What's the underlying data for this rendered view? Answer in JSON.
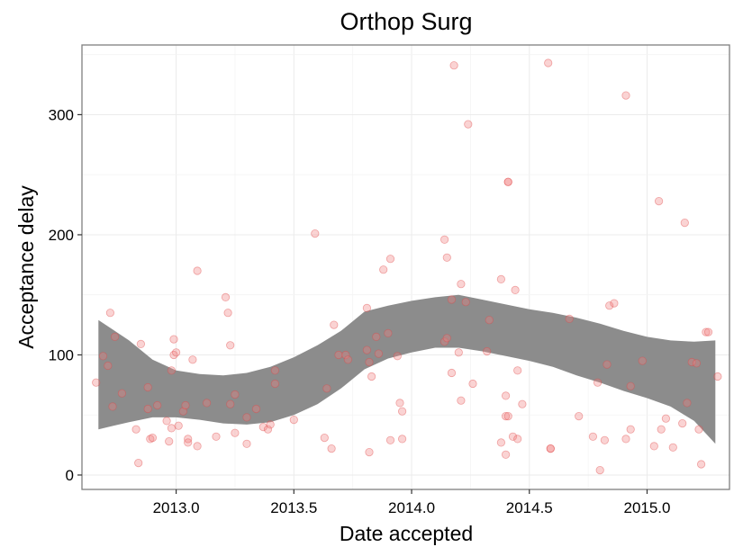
{
  "chart_data": {
    "type": "scatter",
    "title": "Orthop Surg",
    "xlabel": "Date accepted",
    "ylabel": "Acceptance delay",
    "xlim": [
      2012.6,
      2015.35
    ],
    "ylim": [
      -12,
      358
    ],
    "xticks": [
      2013.0,
      2013.5,
      2014.0,
      2014.5,
      2015.0
    ],
    "xtick_labels": [
      "2013.0",
      "2013.5",
      "2014.0",
      "2014.5",
      "2015.0"
    ],
    "yticks": [
      0,
      100,
      200,
      300
    ],
    "ytick_labels": [
      "0",
      "100",
      "200",
      "300"
    ],
    "grid": true,
    "legend": "none",
    "colors": {
      "points": "#f08080",
      "band": "#8c8c8c",
      "grid": "#ebebeb",
      "frame": "#7f7f7f"
    },
    "points": [
      [
        2012.66,
        77
      ],
      [
        2012.69,
        99
      ],
      [
        2012.71,
        91
      ],
      [
        2012.72,
        135
      ],
      [
        2012.73,
        57
      ],
      [
        2012.74,
        115
      ],
      [
        2012.77,
        68
      ],
      [
        2012.83,
        38
      ],
      [
        2012.84,
        10
      ],
      [
        2012.85,
        109
      ],
      [
        2012.88,
        55
      ],
      [
        2012.88,
        73
      ],
      [
        2012.89,
        30
      ],
      [
        2012.9,
        31
      ],
      [
        2012.92,
        58
      ],
      [
        2012.96,
        45
      ],
      [
        2012.97,
        28
      ],
      [
        2012.98,
        87
      ],
      [
        2012.98,
        39
      ],
      [
        2012.99,
        113
      ],
      [
        2012.99,
        100
      ],
      [
        2013.0,
        102
      ],
      [
        2013.01,
        41
      ],
      [
        2013.03,
        53
      ],
      [
        2013.04,
        58
      ],
      [
        2013.05,
        27
      ],
      [
        2013.05,
        30
      ],
      [
        2013.07,
        96
      ],
      [
        2013.09,
        170
      ],
      [
        2013.09,
        24
      ],
      [
        2013.13,
        60
      ],
      [
        2013.17,
        32
      ],
      [
        2013.21,
        148
      ],
      [
        2013.22,
        135
      ],
      [
        2013.23,
        108
      ],
      [
        2013.23,
        59
      ],
      [
        2013.25,
        67
      ],
      [
        2013.25,
        35
      ],
      [
        2013.3,
        26
      ],
      [
        2013.3,
        48
      ],
      [
        2013.34,
        55
      ],
      [
        2013.37,
        40
      ],
      [
        2013.39,
        38
      ],
      [
        2013.4,
        42
      ],
      [
        2013.42,
        76
      ],
      [
        2013.42,
        87
      ],
      [
        2013.5,
        46
      ],
      [
        2013.59,
        201
      ],
      [
        2013.63,
        31
      ],
      [
        2013.64,
        72
      ],
      [
        2013.66,
        22
      ],
      [
        2013.67,
        125
      ],
      [
        2013.69,
        100
      ],
      [
        2013.72,
        100
      ],
      [
        2013.73,
        96
      ],
      [
        2013.81,
        139
      ],
      [
        2013.81,
        104
      ],
      [
        2013.82,
        94
      ],
      [
        2013.82,
        19
      ],
      [
        2013.83,
        82
      ],
      [
        2013.85,
        115
      ],
      [
        2013.86,
        101
      ],
      [
        2013.88,
        171
      ],
      [
        2013.9,
        118
      ],
      [
        2013.91,
        29
      ],
      [
        2013.91,
        180
      ],
      [
        2013.94,
        99
      ],
      [
        2013.95,
        60
      ],
      [
        2013.96,
        53
      ],
      [
        2013.96,
        30
      ],
      [
        2014.14,
        196
      ],
      [
        2014.14,
        111
      ],
      [
        2014.15,
        114
      ],
      [
        2014.15,
        181
      ],
      [
        2014.17,
        146
      ],
      [
        2014.17,
        85
      ],
      [
        2014.18,
        341
      ],
      [
        2014.2,
        102
      ],
      [
        2014.21,
        159
      ],
      [
        2014.21,
        62
      ],
      [
        2014.23,
        144
      ],
      [
        2014.24,
        292
      ],
      [
        2014.26,
        76
      ],
      [
        2014.32,
        103
      ],
      [
        2014.33,
        129
      ],
      [
        2014.38,
        163
      ],
      [
        2014.38,
        27
      ],
      [
        2014.4,
        17
      ],
      [
        2014.4,
        66
      ],
      [
        2014.4,
        49
      ],
      [
        2014.41,
        49
      ],
      [
        2014.41,
        244
      ],
      [
        2014.41,
        244
      ],
      [
        2014.43,
        32
      ],
      [
        2014.44,
        154
      ],
      [
        2014.45,
        30
      ],
      [
        2014.45,
        87
      ],
      [
        2014.47,
        59
      ],
      [
        2014.58,
        343
      ],
      [
        2014.59,
        22
      ],
      [
        2014.59,
        22
      ],
      [
        2014.67,
        130
      ],
      [
        2014.71,
        49
      ],
      [
        2014.77,
        32
      ],
      [
        2014.79,
        77
      ],
      [
        2014.8,
        4
      ],
      [
        2014.82,
        29
      ],
      [
        2014.83,
        92
      ],
      [
        2014.84,
        141
      ],
      [
        2014.86,
        143
      ],
      [
        2014.91,
        316
      ],
      [
        2014.91,
        30
      ],
      [
        2014.93,
        38
      ],
      [
        2014.93,
        74
      ],
      [
        2014.98,
        95
      ],
      [
        2015.03,
        24
      ],
      [
        2015.05,
        228
      ],
      [
        2015.06,
        38
      ],
      [
        2015.08,
        47
      ],
      [
        2015.11,
        23
      ],
      [
        2015.15,
        43
      ],
      [
        2015.16,
        210
      ],
      [
        2015.17,
        60
      ],
      [
        2015.19,
        94
      ],
      [
        2015.21,
        93
      ],
      [
        2015.22,
        38
      ],
      [
        2015.23,
        9
      ],
      [
        2015.25,
        119
      ],
      [
        2015.26,
        119
      ],
      [
        2015.3,
        82
      ]
    ],
    "band": {
      "x": [
        2012.67,
        2012.8,
        2012.9,
        2013.0,
        2013.1,
        2013.2,
        2013.3,
        2013.4,
        2013.5,
        2013.6,
        2013.7,
        2013.8,
        2013.9,
        2014.0,
        2014.1,
        2014.2,
        2014.3,
        2014.4,
        2014.5,
        2014.6,
        2014.7,
        2014.8,
        2014.9,
        2015.0,
        2015.1,
        2015.2,
        2015.29
      ],
      "upper": [
        129,
        112,
        96,
        87,
        84,
        83,
        85,
        90,
        98,
        108,
        120,
        136,
        141,
        145,
        148,
        150,
        146,
        142,
        138,
        135,
        131,
        126,
        120,
        115,
        112,
        111,
        112
      ],
      "lower": [
        38,
        44,
        48,
        48,
        46,
        43,
        42,
        44,
        50,
        59,
        72,
        88,
        97,
        102,
        106,
        106,
        103,
        99,
        95,
        90,
        83,
        77,
        70,
        64,
        57,
        45,
        26
      ]
    }
  }
}
